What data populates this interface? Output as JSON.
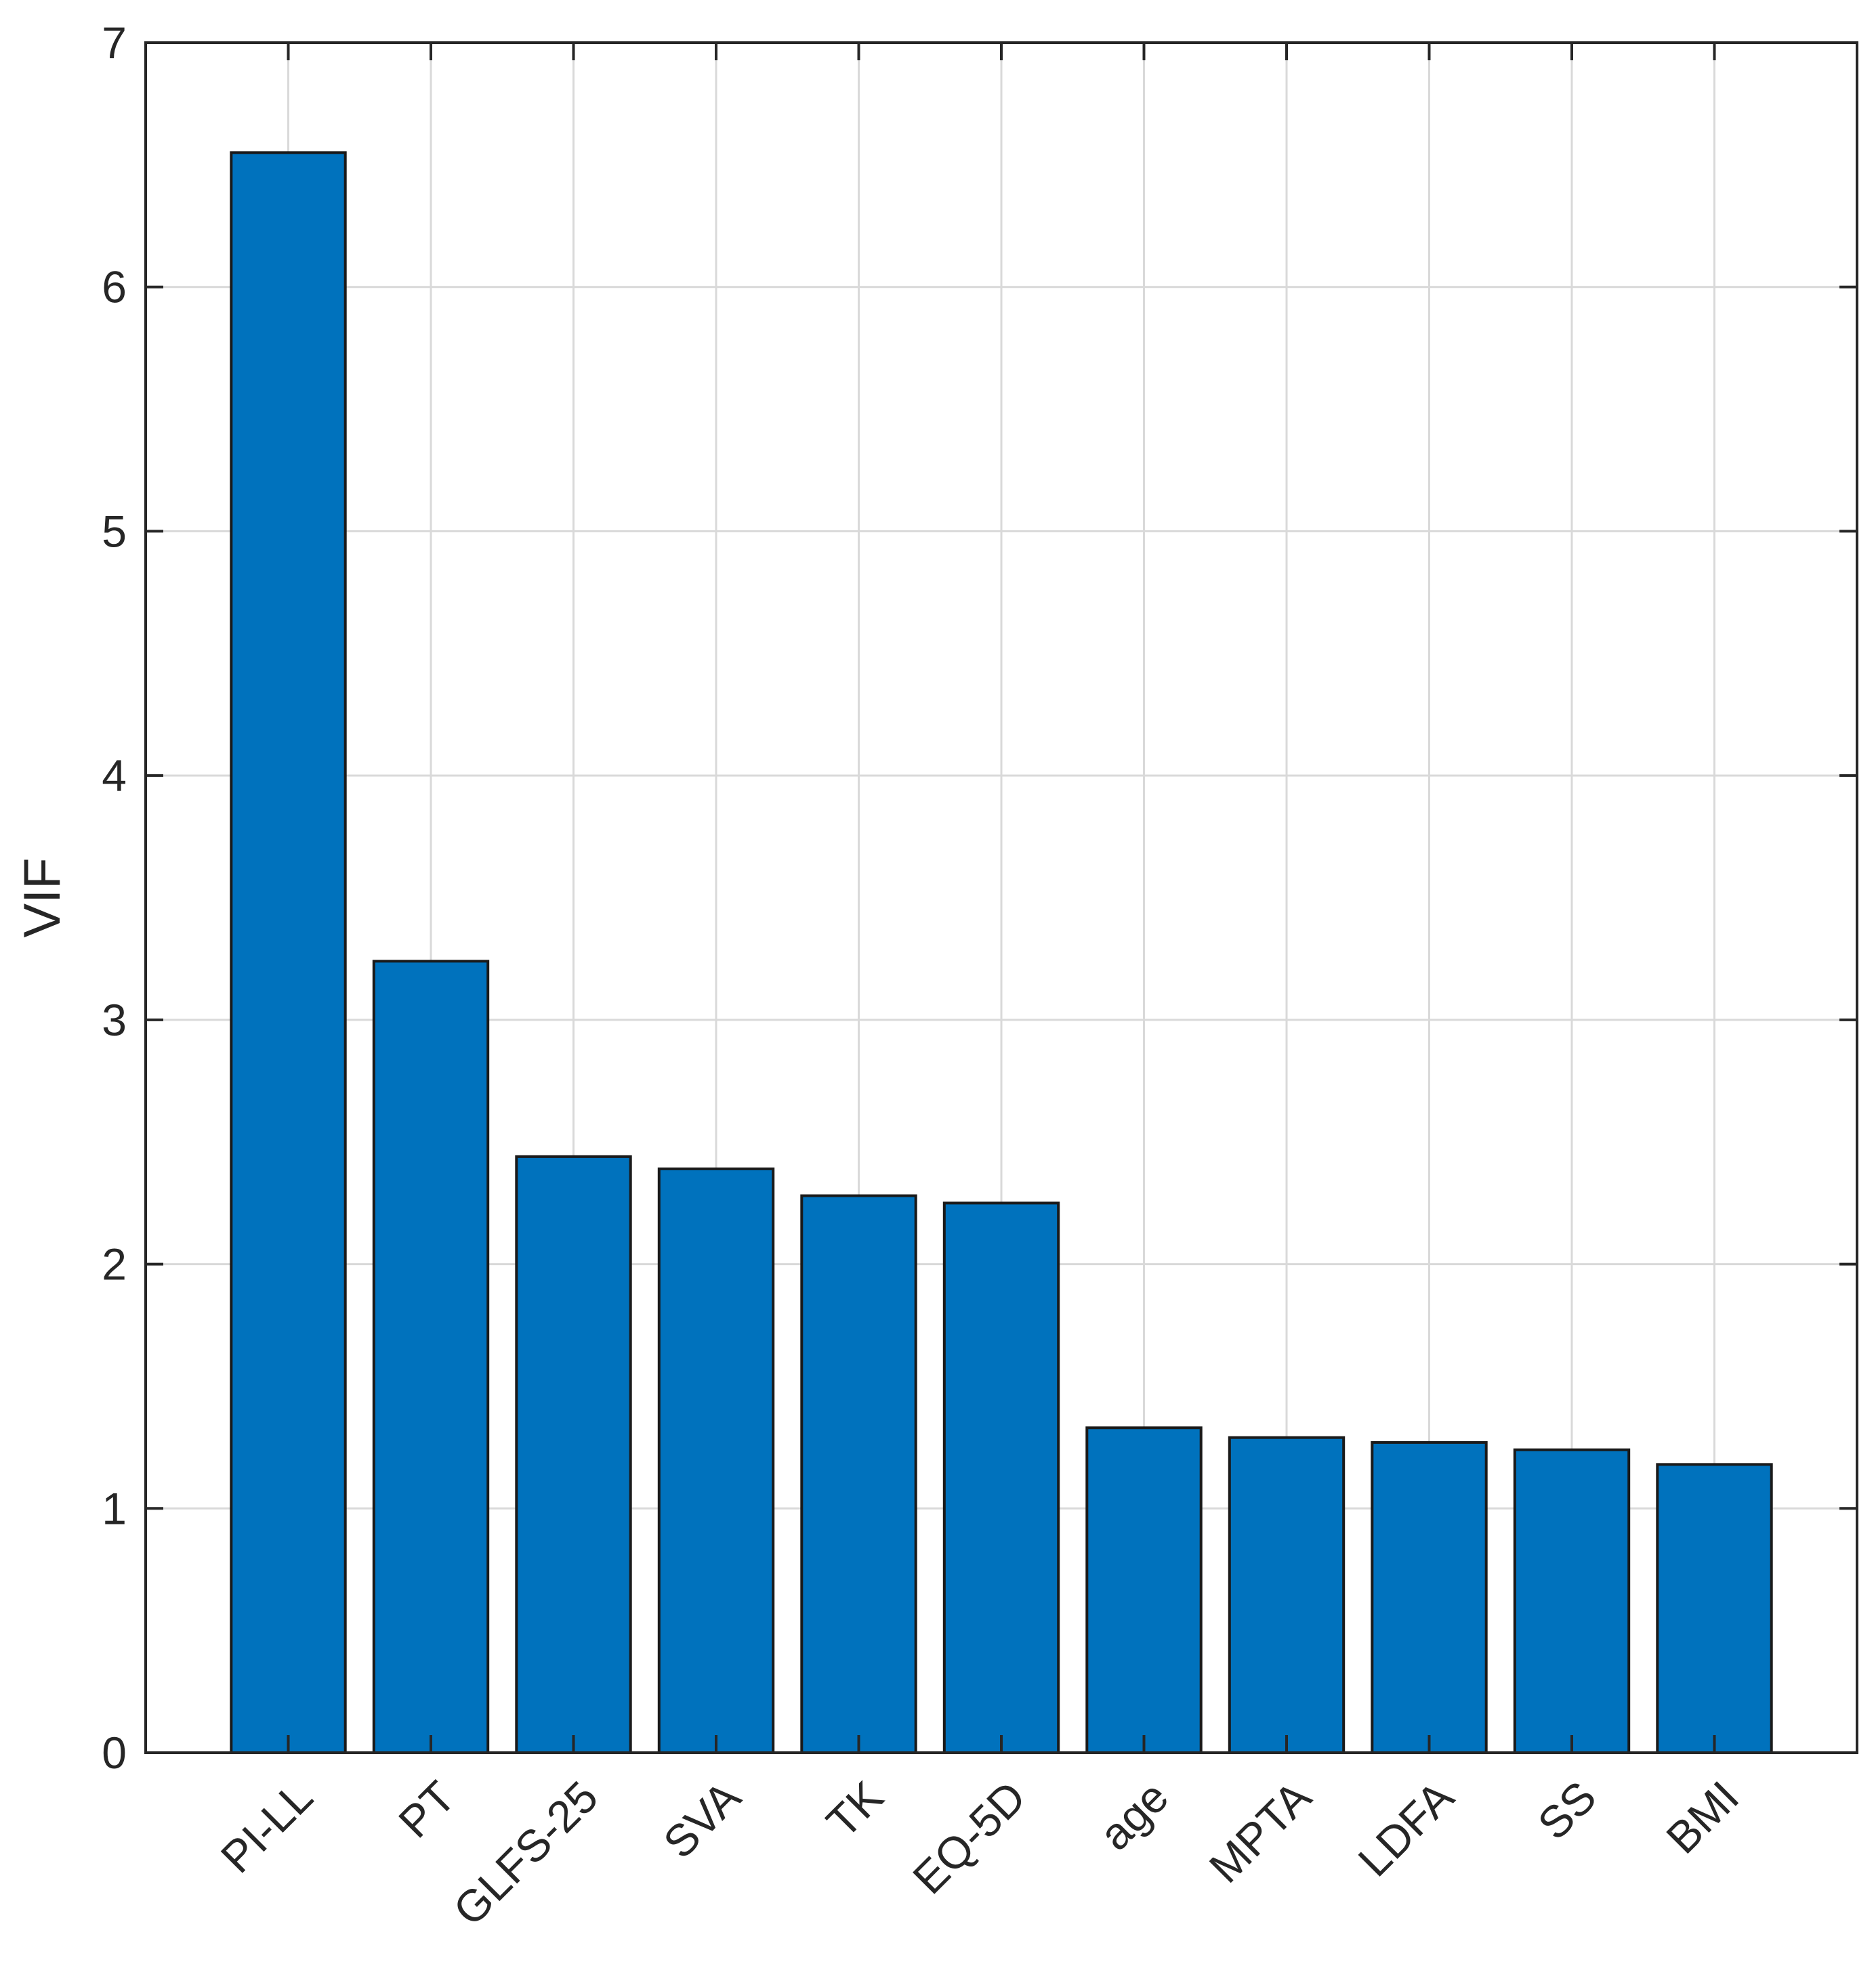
{
  "chart_data": {
    "type": "bar",
    "categories": [
      "PI-LL",
      "PT",
      "GLFS-25",
      "SVA",
      "TK",
      "EQ-5D",
      "age",
      "MPTA",
      "LDFA",
      "SS",
      "BMI"
    ],
    "values": [
      6.55,
      3.24,
      2.44,
      2.39,
      2.28,
      2.25,
      1.33,
      1.29,
      1.27,
      1.24,
      1.18
    ],
    "title": "",
    "xlabel": "",
    "ylabel": "VIF",
    "ylim": [
      0,
      7
    ],
    "yticks": [
      "0",
      "1",
      "2",
      "3",
      "4",
      "5",
      "6",
      "7"
    ],
    "grid": true,
    "bar_color": "#0072BD"
  }
}
